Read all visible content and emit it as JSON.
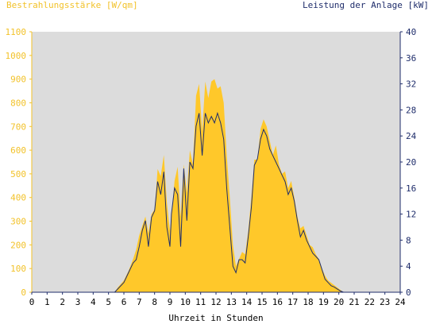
{
  "chart_data": {
    "type": "area",
    "left_axis_title": "Bestrahlungsstärke [W/qm]",
    "right_axis_title": "Leistung der Anlage [kW]",
    "xlabel": "Uhrzeit in Stunden",
    "xlim": [
      0,
      24
    ],
    "ylim_left": [
      0,
      1100
    ],
    "ylim_right": [
      0,
      40
    ],
    "x_ticks": [
      "0",
      "1",
      "2",
      "3",
      "4",
      "5",
      "6",
      "7",
      "8",
      "9",
      "10",
      "11",
      "12",
      "13",
      "14",
      "15",
      "16",
      "17",
      "18",
      "19",
      "20",
      "21",
      "22",
      "23",
      "24"
    ],
    "y_left_ticks": [
      "0",
      "100",
      "200",
      "300",
      "400",
      "500",
      "600",
      "700",
      "800",
      "900",
      "1000",
      "1100"
    ],
    "y_right_ticks": [
      "0",
      "4",
      "8",
      "12",
      "16",
      "20",
      "24",
      "28",
      "32",
      "36",
      "40"
    ],
    "grid": false,
    "colors": {
      "plot_background": "#dcdcdc",
      "irradiance_fill": "#ffc82a",
      "power_line": "#1f2d6b",
      "left_axis_text": "#f2c22a",
      "right_axis_text": "#1f2d6b"
    },
    "series": [
      {
        "name": "Bestrahlungsstärke [W/qm]",
        "axis": "left",
        "style": "filled-area",
        "x": [
          0,
          5.4,
          5.6,
          6.0,
          6.3,
          6.6,
          6.8,
          7.0,
          7.2,
          7.4,
          7.6,
          7.8,
          8.0,
          8.2,
          8.4,
          8.6,
          8.8,
          9.0,
          9.1,
          9.3,
          9.5,
          9.7,
          9.9,
          10.1,
          10.3,
          10.5,
          10.7,
          10.9,
          11.1,
          11.3,
          11.5,
          11.7,
          11.9,
          12.1,
          12.3,
          12.5,
          12.7,
          12.9,
          13.1,
          13.3,
          13.5,
          13.7,
          13.9,
          14.1,
          14.3,
          14.5,
          14.7,
          14.9,
          15.1,
          15.3,
          15.5,
          15.7,
          15.9,
          16.1,
          16.3,
          16.5,
          16.7,
          16.9,
          17.1,
          17.3,
          17.5,
          17.7,
          17.9,
          18.1,
          18.3,
          18.5,
          18.7,
          18.9,
          19.1,
          19.3,
          19.5,
          19.7,
          19.9,
          20.1,
          20.3,
          24
        ],
        "values": [
          0,
          0,
          20,
          50,
          90,
          140,
          180,
          240,
          280,
          320,
          250,
          330,
          350,
          520,
          490,
          580,
          380,
          260,
          320,
          470,
          530,
          320,
          540,
          420,
          600,
          540,
          830,
          880,
          680,
          890,
          820,
          890,
          900,
          860,
          870,
          800,
          580,
          400,
          200,
          110,
          140,
          170,
          160,
          260,
          400,
          560,
          560,
          690,
          730,
          700,
          640,
          580,
          620,
          540,
          500,
          510,
          440,
          470,
          400,
          320,
          270,
          280,
          240,
          200,
          190,
          160,
          140,
          100,
          70,
          50,
          40,
          30,
          20,
          10,
          0,
          0
        ]
      },
      {
        "name": "Leistung der Anlage [kW]",
        "axis": "right",
        "style": "line",
        "x": [
          0,
          5.4,
          5.6,
          6.0,
          6.3,
          6.6,
          6.8,
          7.0,
          7.2,
          7.4,
          7.6,
          7.8,
          8.0,
          8.2,
          8.4,
          8.6,
          8.8,
          9.0,
          9.1,
          9.3,
          9.5,
          9.7,
          9.9,
          10.1,
          10.3,
          10.5,
          10.7,
          10.9,
          11.1,
          11.3,
          11.5,
          11.7,
          11.9,
          12.1,
          12.3,
          12.5,
          12.7,
          12.9,
          13.1,
          13.3,
          13.5,
          13.7,
          13.9,
          14.1,
          14.3,
          14.5,
          14.7,
          14.9,
          15.1,
          15.3,
          15.5,
          15.7,
          15.9,
          16.1,
          16.3,
          16.5,
          16.7,
          16.9,
          17.1,
          17.3,
          17.5,
          17.7,
          17.9,
          18.1,
          18.3,
          18.5,
          18.7,
          18.9,
          19.1,
          19.3,
          19.5,
          19.7,
          19.9,
          20.1,
          20.3,
          24
        ],
        "values": [
          0,
          0,
          0.5,
          1.5,
          3,
          4.5,
          5,
          7,
          9.5,
          11,
          7,
          11.5,
          12.5,
          17,
          15,
          18.5,
          10,
          7,
          12,
          16,
          15,
          7,
          19,
          11,
          20,
          19,
          25.5,
          27.5,
          21,
          27.5,
          26,
          27,
          26,
          27.5,
          26,
          23.5,
          16,
          10,
          4,
          3,
          5,
          5,
          4.5,
          8.5,
          13,
          19.5,
          20.5,
          23.5,
          25,
          24,
          22,
          21,
          20,
          19,
          18,
          17,
          15,
          16,
          14,
          11,
          8.5,
          9.5,
          8,
          7,
          6,
          5.5,
          5,
          3.5,
          2,
          1.5,
          1,
          0.8,
          0.5,
          0.2,
          0,
          0
        ]
      }
    ]
  }
}
